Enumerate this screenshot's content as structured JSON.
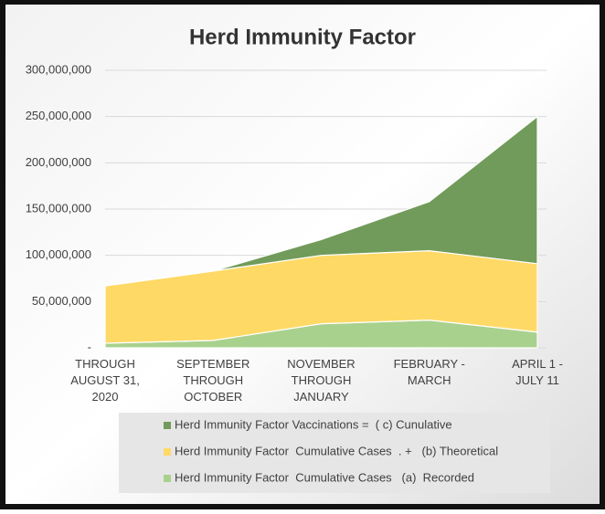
{
  "chart_data": {
    "type": "stacked-area",
    "title": "Herd Immunity Factor",
    "categories": [
      "THROUGH AUGUST 31, 2020",
      "SEPTEMBER THROUGH OCTOBER",
      "NOVEMBER THROUGH JANUARY",
      "FEBRUARY - MARCH",
      "APRIL 1 - JULY 11"
    ],
    "series": [
      {
        "name": "Herd Immunity Factor  Cumulative Cases   (a)  Recorded",
        "color": "#a9d18e",
        "values": [
          5000000,
          8000000,
          26000000,
          30000000,
          17000000
        ]
      },
      {
        "name": "Herd Immunity Factor  Cumulative Cases  . +   (b) Theoretical",
        "color": "#ffd966",
        "values": [
          62000000,
          75000000,
          74000000,
          75000000,
          74000000
        ]
      },
      {
        "name": "Herd Immunity Factor Vaccinations =  ( c) Cunulative",
        "color": "#719b5a",
        "values": [
          0,
          0,
          17000000,
          53000000,
          159000000
        ]
      }
    ],
    "ylim": [
      0,
      300000000
    ],
    "yticks": [
      {
        "value": 0,
        "label": "-"
      },
      {
        "value": 50000000,
        "label": "50,000,000"
      },
      {
        "value": 100000000,
        "label": "100,000,000"
      },
      {
        "value": 150000000,
        "label": "150,000,000"
      },
      {
        "value": 200000000,
        "label": "200,000,000"
      },
      {
        "value": 250000000,
        "label": "250,000,000"
      },
      {
        "value": 300000000,
        "label": "300,000,000"
      }
    ],
    "grid": true
  }
}
